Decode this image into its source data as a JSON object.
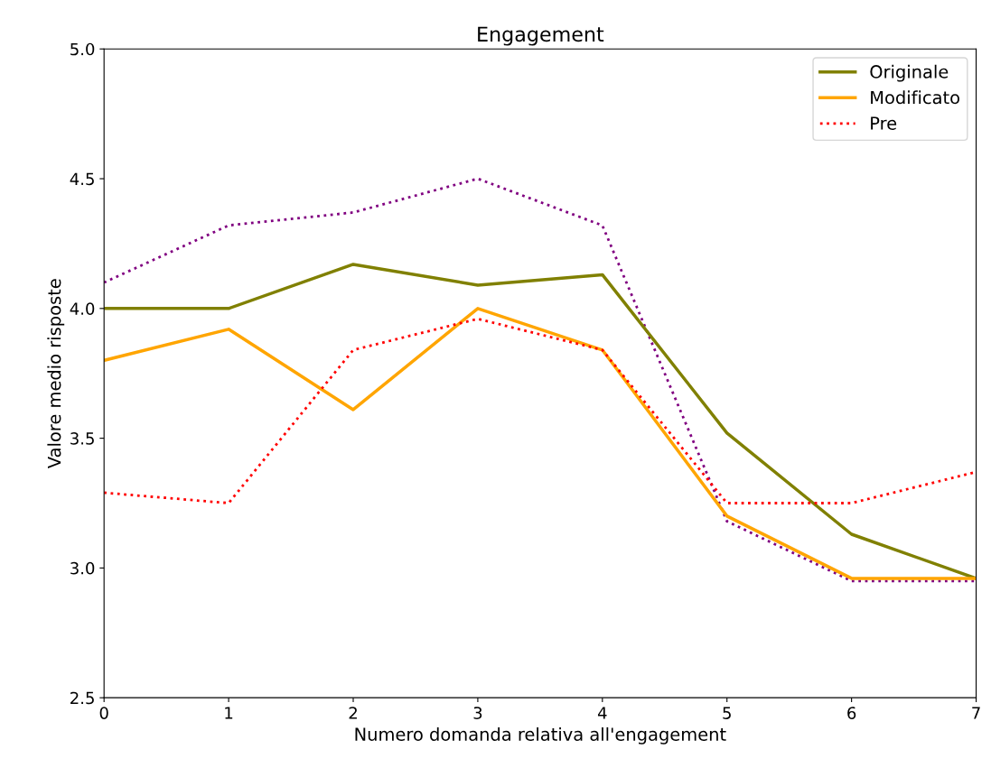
{
  "chart_data": {
    "type": "line",
    "title": "Engagement",
    "xlabel": "Numero domanda relativa all'engagement",
    "ylabel": "Valore medio risposte",
    "x": [
      0,
      1,
      2,
      3,
      4,
      5,
      6,
      7
    ],
    "series": [
      {
        "color": "#800080",
        "line_style": "dotted",
        "values": [
          4.1,
          4.32,
          4.37,
          4.5,
          4.32,
          3.18,
          2.95,
          2.95
        ]
      },
      {
        "name": "Originale",
        "color": "#808000",
        "line_style": "solid",
        "values": [
          4.0,
          4.0,
          4.17,
          4.09,
          4.13,
          3.52,
          3.13,
          2.96
        ]
      },
      {
        "name": "Modificato",
        "color": "#ffa500",
        "line_style": "solid",
        "values": [
          3.8,
          3.92,
          3.61,
          4.0,
          3.84,
          3.2,
          2.96,
          2.96
        ]
      },
      {
        "name": "Pre",
        "color": "#ff0000",
        "line_style": "dotted",
        "values": [
          3.29,
          3.25,
          3.84,
          3.96,
          3.84,
          3.25,
          3.25,
          3.37
        ]
      }
    ],
    "xlim": [
      0,
      7
    ],
    "xticks": [
      0,
      1,
      2,
      3,
      4,
      5,
      6,
      7
    ],
    "ylim": [
      2.5,
      5.0
    ],
    "yticks": [
      {
        "value": 2.5,
        "label": "2.5"
      },
      {
        "value": 3.0,
        "label": "3.0"
      },
      {
        "value": 3.5,
        "label": "3.5"
      },
      {
        "value": 4.0,
        "label": "4.0"
      },
      {
        "value": 4.5,
        "label": "4.5"
      },
      {
        "value": 5.0,
        "label": "5.0"
      }
    ],
    "grid": false,
    "legend": "top right",
    "marker": "none"
  }
}
